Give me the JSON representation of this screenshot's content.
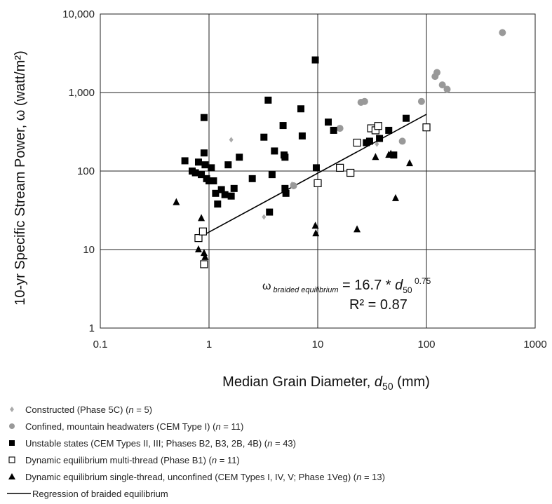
{
  "chart_data": {
    "type": "scatter",
    "xscale": "log",
    "yscale": "log",
    "xlim": [
      0.1,
      1000
    ],
    "ylim": [
      1,
      10000
    ],
    "grid": true,
    "x_ticks": [
      "0.1",
      "1",
      "10",
      "100",
      "1000"
    ],
    "y_ticks": [
      "1",
      "10",
      "100",
      "1,000",
      "10,000"
    ],
    "xlabel": {
      "text": "Median Grain Diameter, ",
      "var": "d",
      "sub": "50",
      "unit": " (mm)"
    },
    "ylabel": "10-yr Specific Stream Power, ω (watt/m²)",
    "annotation": {
      "omega": "ω",
      "sub": "braided equilibrium",
      "eq": " = 16.7 * ",
      "var": "d",
      "var_sub": "50",
      "exp": " 0.75",
      "r2": "R² = 0.87"
    },
    "regression": {
      "name": "Regression of braided equilibrium",
      "coef": 16.7,
      "exp": 0.75,
      "x_range": [
        0.9,
        100
      ]
    },
    "series": [
      {
        "name": "Constructed (Phase 5C) (n = 5)",
        "marker": "diamond",
        "color": "#aaaaaa",
        "points": [
          [
            1.6,
            250
          ],
          [
            3.2,
            26
          ],
          [
            5.8,
            68
          ],
          [
            14,
            330
          ],
          [
            35,
            220
          ]
        ]
      },
      {
        "name": "Confined, mountain headwaters (CEM Type I) (n = 11)",
        "marker": "circle",
        "color": "#999999",
        "points": [
          [
            25,
            750
          ],
          [
            27,
            770
          ],
          [
            16,
            350
          ],
          [
            60,
            240
          ],
          [
            90,
            770
          ],
          [
            120,
            1600
          ],
          [
            125,
            1800
          ],
          [
            140,
            1250
          ],
          [
            155,
            1100
          ],
          [
            500,
            5800
          ],
          [
            6,
            65
          ]
        ]
      },
      {
        "name": "Unstable states (CEM Types II, III; Phases B2, B3, 2B, 4B) (n = 43)",
        "marker": "square",
        "color": "#000000",
        "points": [
          [
            0.6,
            135
          ],
          [
            0.7,
            100
          ],
          [
            0.75,
            95
          ],
          [
            0.8,
            130
          ],
          [
            0.85,
            90
          ],
          [
            0.9,
            480
          ],
          [
            0.9,
            170
          ],
          [
            0.92,
            120
          ],
          [
            0.95,
            80
          ],
          [
            1.0,
            75
          ],
          [
            1.05,
            110
          ],
          [
            1.1,
            75
          ],
          [
            1.15,
            52
          ],
          [
            1.2,
            38
          ],
          [
            1.3,
            58
          ],
          [
            1.4,
            50
          ],
          [
            1.5,
            120
          ],
          [
            1.6,
            48
          ],
          [
            1.7,
            60
          ],
          [
            1.9,
            150
          ],
          [
            2.5,
            80
          ],
          [
            3.2,
            270
          ],
          [
            3.5,
            800
          ],
          [
            3.6,
            30
          ],
          [
            3.8,
            90
          ],
          [
            4.0,
            180
          ],
          [
            4.8,
            380
          ],
          [
            4.9,
            160
          ],
          [
            5.0,
            150
          ],
          [
            5.0,
            60
          ],
          [
            5.1,
            52
          ],
          [
            7.0,
            620
          ],
          [
            7.2,
            280
          ],
          [
            9.5,
            2600
          ],
          [
            9.7,
            110
          ],
          [
            12.5,
            420
          ],
          [
            14,
            330
          ],
          [
            30,
            240
          ],
          [
            37,
            260
          ],
          [
            45,
            330
          ],
          [
            50,
            160
          ],
          [
            65,
            470
          ],
          [
            28,
            230
          ]
        ]
      },
      {
        "name": "Dynamic equilibrium multi-thread (Phase B1) (n = 11)",
        "marker": "open-square",
        "color": "#000000",
        "points": [
          [
            0.8,
            14
          ],
          [
            0.88,
            17
          ],
          [
            0.9,
            6.5
          ],
          [
            10,
            70
          ],
          [
            16,
            110
          ],
          [
            20,
            95
          ],
          [
            23,
            230
          ],
          [
            31,
            350
          ],
          [
            34,
            330
          ],
          [
            36,
            375
          ],
          [
            100,
            360
          ]
        ]
      },
      {
        "name": "Dynamic equilibrium single-thread, unconfined (CEM Types I, IV, V; Phase 1Veg) (n = 13)",
        "marker": "triangle",
        "color": "#000000",
        "points": [
          [
            0.5,
            40
          ],
          [
            0.8,
            10
          ],
          [
            0.85,
            25
          ],
          [
            0.9,
            9
          ],
          [
            0.92,
            8
          ],
          [
            9.5,
            20
          ],
          [
            9.6,
            16
          ],
          [
            23,
            18
          ],
          [
            34,
            150
          ],
          [
            45,
            160
          ],
          [
            47,
            165
          ],
          [
            52,
            45
          ],
          [
            70,
            125
          ]
        ]
      }
    ],
    "legend": [
      {
        "marker": "diamond",
        "label": "Constructed (Phase 5C) (",
        "n": "n",
        "tail": " = 5)"
      },
      {
        "marker": "circle",
        "label": "Confined, mountain headwaters (CEM Type I) (",
        "n": "n",
        "tail": " = 11)"
      },
      {
        "marker": "square",
        "label": "Unstable states (CEM Types II, III; Phases B2, B3, 2B, 4B) (",
        "n": "n",
        "tail": " = 43)"
      },
      {
        "marker": "open-square",
        "label": "Dynamic equilibrium multi-thread (Phase B1) (",
        "n": "n",
        "tail": " = 11)"
      },
      {
        "marker": "triangle",
        "label": "Dynamic equilibrium single-thread, unconfined (CEM Types I, IV, V; Phase 1Veg) (",
        "n": "n",
        "tail": " = 13)"
      },
      {
        "marker": "line",
        "label": "Regression of braided equilibrium",
        "n": "",
        "tail": ""
      }
    ]
  }
}
